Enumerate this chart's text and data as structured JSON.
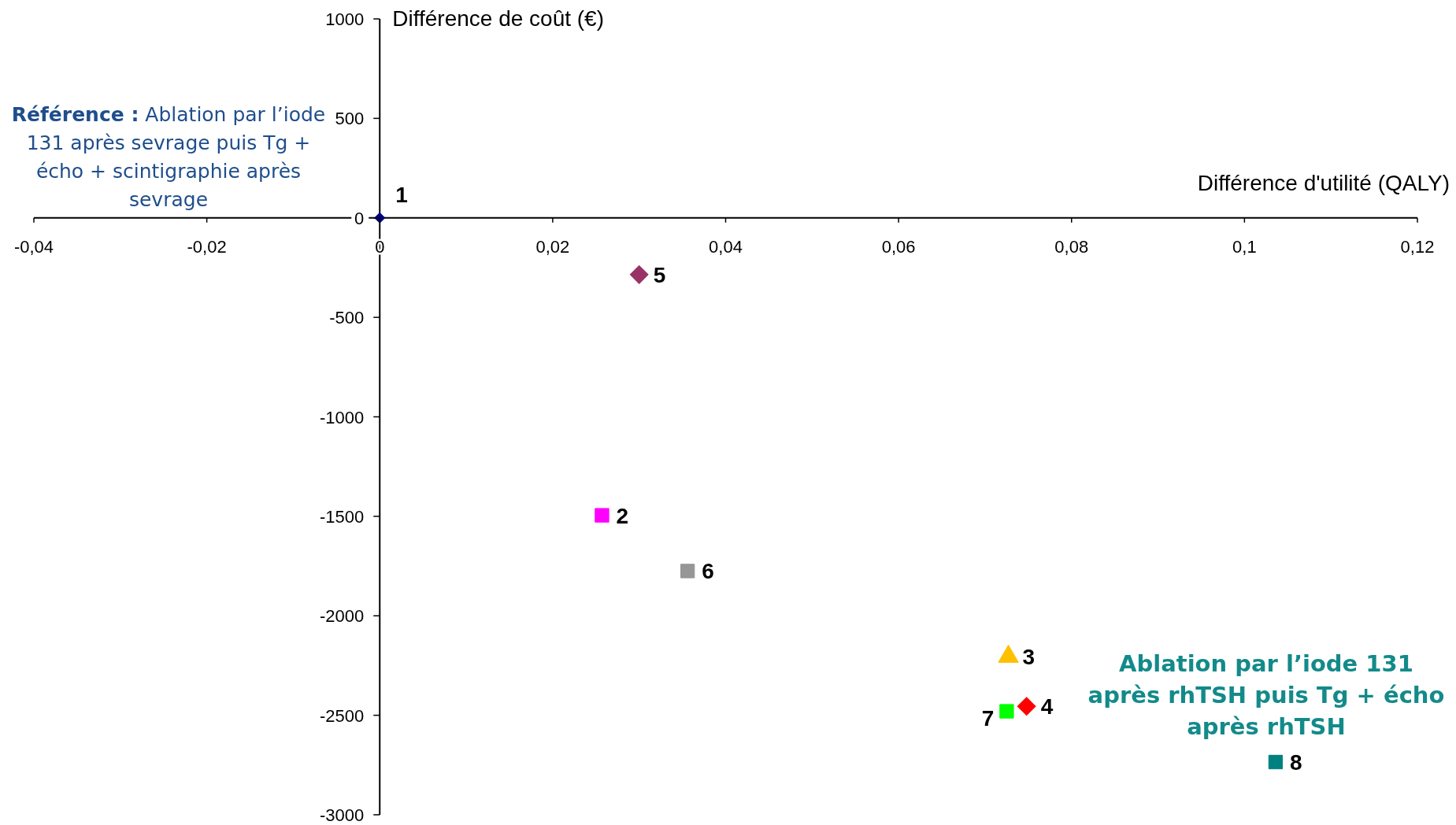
{
  "chart_data": {
    "type": "scatter",
    "xlabel": "Différence d'utilité (QALY)",
    "ylabel": "Différence de coût (€)",
    "xlim": [
      -0.04,
      0.12
    ],
    "xticks": [
      {
        "value": -0.04,
        "label": "-0,04"
      },
      {
        "value": -0.02,
        "label": "-0,02"
      },
      0,
      {
        "value": 0.02,
        "label": "0,02"
      },
      {
        "value": 0.04,
        "label": "0,04"
      },
      {
        "value": 0.06,
        "label": "0,06"
      },
      {
        "value": 0.08,
        "label": "0,08"
      },
      {
        "value": 0.1,
        "label": "0,1"
      },
      {
        "value": 0.12,
        "label": "0,12"
      }
    ],
    "ylim": [
      -3000,
      1000
    ],
    "yticks": [
      -3000,
      -2500,
      -2000,
      -1500,
      -1000,
      -500,
      0,
      500,
      1000
    ],
    "series": [
      {
        "name": "1",
        "color": "#000080",
        "marker": "diamond",
        "x": [
          0
        ],
        "values": [
          0
        ]
      },
      {
        "name": "2",
        "color": "#ff00ff",
        "marker": "square",
        "x": [
          0.0257
        ],
        "values": [
          -1495
        ]
      },
      {
        "name": "3",
        "color": "#ffc000",
        "marker": "triangle",
        "x": [
          0.0727
        ],
        "values": [
          -2205
        ]
      },
      {
        "name": "4",
        "color": "#ff0000",
        "marker": "diamond",
        "x": [
          0.0748
        ],
        "values": [
          -2455
        ]
      },
      {
        "name": "5",
        "color": "#993366",
        "marker": "diamond",
        "x": [
          0.03
        ],
        "values": [
          -285
        ]
      },
      {
        "name": "6",
        "color": "#969696",
        "marker": "square",
        "x": [
          0.0356
        ],
        "values": [
          -1775
        ]
      },
      {
        "name": "7",
        "color": "#00ff00",
        "marker": "square",
        "x": [
          0.0725
        ],
        "values": [
          -2480
        ]
      },
      {
        "name": "8",
        "color": "#008080",
        "marker": "square",
        "x": [
          0.1036
        ],
        "values": [
          -2735
        ]
      }
    ],
    "annotations": [
      "Référence : Ablation par l’iode 131 après sevrage puis Tg + écho + scintigraphie après sevrage",
      "Ablation par l’iode 131 après rhTSH puis Tg + écho après rhTSH"
    ]
  }
}
